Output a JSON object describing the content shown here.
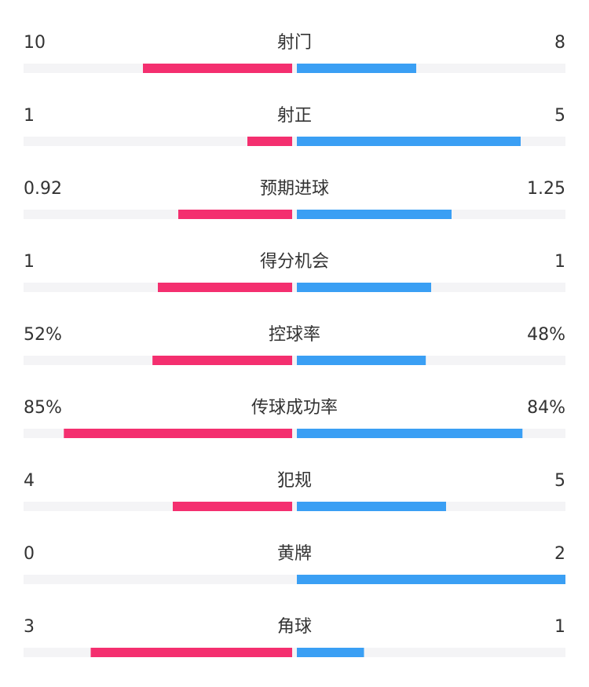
{
  "rows": [
    {
      "label": "射门",
      "values": [
        10,
        8
      ]
    },
    {
      "label": "射正",
      "values": [
        1,
        5
      ]
    },
    {
      "label": "预期进球",
      "values": [
        0.92,
        1.25
      ]
    },
    {
      "label": "得分机会",
      "values": [
        1,
        1
      ]
    },
    {
      "label": "控球率",
      "values": [
        52,
        48
      ],
      "value_labels": [
        "52%",
        "48%"
      ],
      "xlim": [
        0,
        100
      ]
    },
    {
      "label": "传球成功率",
      "values": [
        85,
        84
      ],
      "value_labels": [
        "85%",
        "84%"
      ],
      "xlim": [
        0,
        100
      ]
    },
    {
      "label": "犯规",
      "values": [
        4,
        5
      ]
    },
    {
      "label": "黄牌",
      "values": [
        0,
        2
      ]
    },
    {
      "label": "角球",
      "values": [
        3,
        1
      ]
    }
  ],
  "colors": [
    "#f42f6f",
    "#3a9ff4"
  ]
}
